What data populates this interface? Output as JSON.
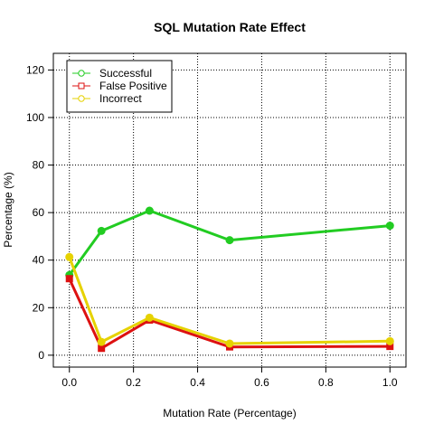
{
  "chart_data": {
    "type": "line",
    "title": "SQL Mutation Rate Effect",
    "xlabel": "Mutation Rate (Percentage)",
    "ylabel": "Percentage (%)",
    "xlim": [
      -0.05,
      1.05
    ],
    "ylim": [
      -5,
      127
    ],
    "xticks": [
      0.0,
      0.2,
      0.4,
      0.6,
      0.8,
      1.0
    ],
    "xtick_labels": [
      "0.0",
      "0.2",
      "0.4",
      "0.6",
      "0.8",
      "1.0"
    ],
    "yticks": [
      0,
      20,
      40,
      60,
      80,
      100,
      120
    ],
    "ytick_labels": [
      "0",
      "20",
      "40",
      "60",
      "80",
      "100",
      "120"
    ],
    "grid": true,
    "legend_position": "top-left",
    "x": [
      0.0,
      0.1,
      0.25,
      0.5,
      1.0
    ],
    "series": [
      {
        "name": "Successful",
        "color": "#22cc22",
        "marker": "circle",
        "values": [
          33.7,
          52.3,
          60.8,
          48.4,
          54.5
        ]
      },
      {
        "name": "False Positive",
        "color": "#dd1111",
        "marker": "square",
        "values": [
          32.2,
          2.9,
          14.8,
          3.5,
          3.7
        ]
      },
      {
        "name": "Incorrect",
        "color": "#e6d200",
        "marker": "circle",
        "values": [
          41.3,
          5.6,
          15.8,
          4.9,
          5.9
        ]
      }
    ]
  }
}
